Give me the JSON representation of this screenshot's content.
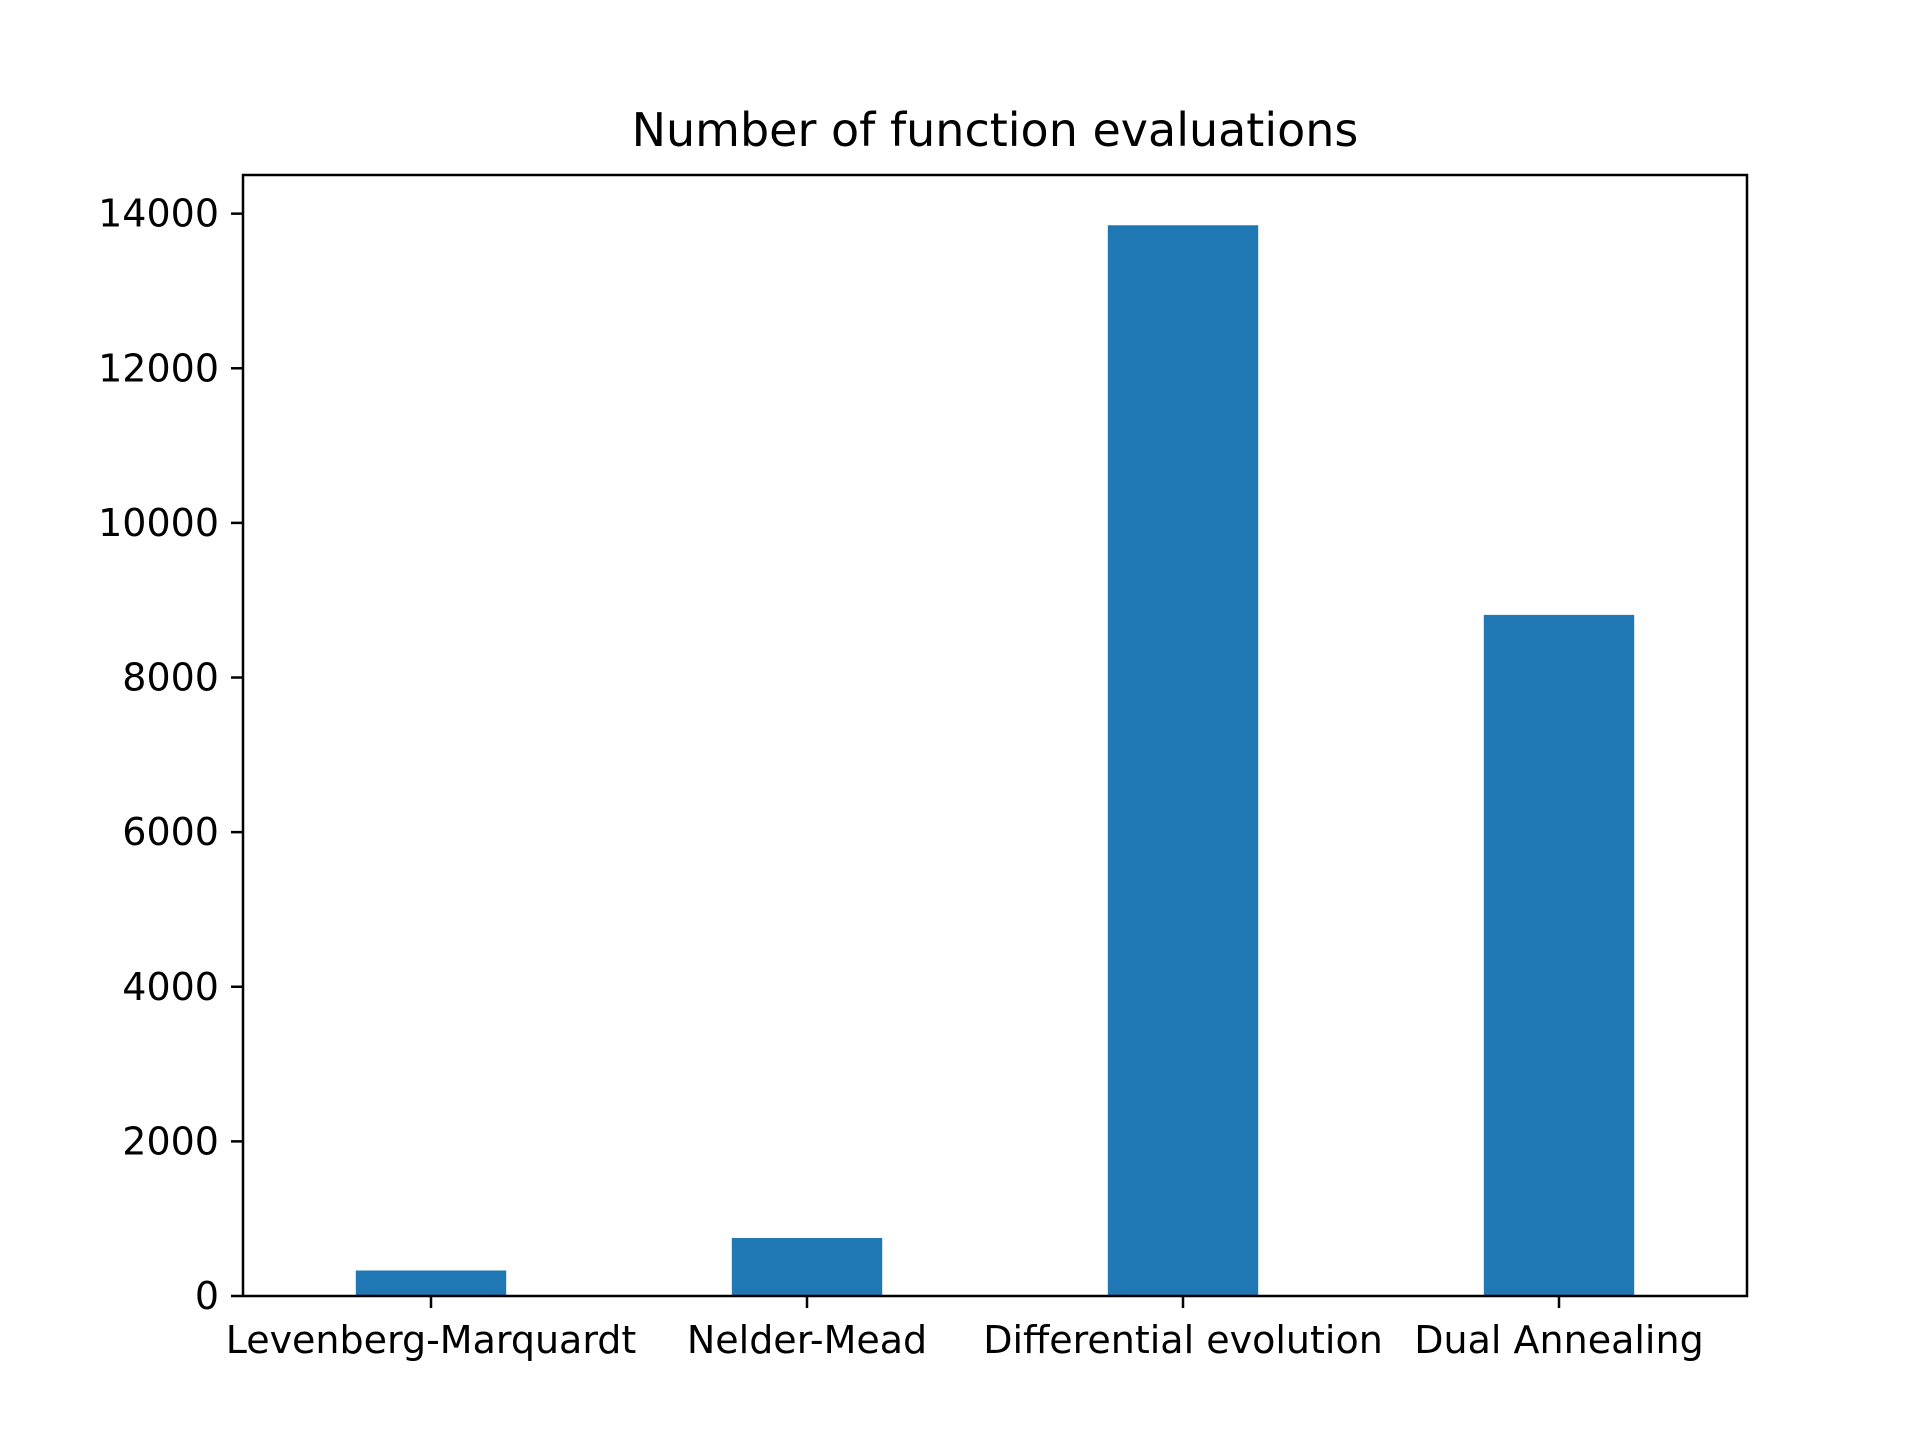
{
  "chart_data": {
    "type": "bar",
    "title": "Number of function evaluations",
    "xlabel": "",
    "ylabel": "",
    "categories": [
      "Levenberg-Marquardt",
      "Nelder-Mead",
      "Differential evolution",
      "Dual Annealing"
    ],
    "values": [
      330,
      750,
      13850,
      8810
    ],
    "ylim": [
      0,
      14500
    ],
    "yticks": [
      0,
      2000,
      4000,
      6000,
      8000,
      10000,
      12000,
      14000
    ],
    "grid": false,
    "legend": "none",
    "bar_color": "#1f77b4",
    "axis_color": "#000000"
  }
}
